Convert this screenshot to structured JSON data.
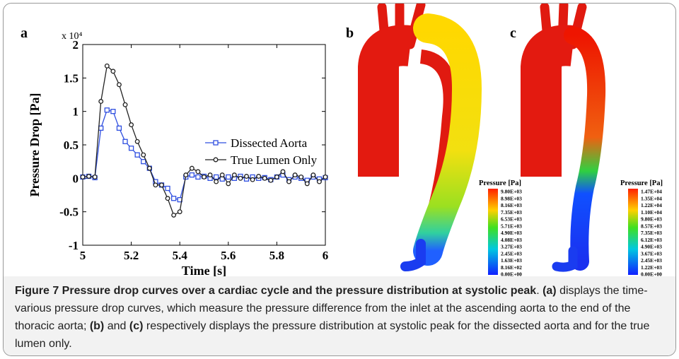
{
  "chart_data": {
    "type": "line",
    "panel_label": "a",
    "multiplier": "x 10⁴",
    "xlabel": "Time [s]",
    "ylabel": "Pressure Drop [Pa]",
    "x": [
      5.0,
      5.025,
      5.05,
      5.075,
      5.1,
      5.125,
      5.15,
      5.175,
      5.2,
      5.225,
      5.25,
      5.275,
      5.3,
      5.325,
      5.35,
      5.375,
      5.4,
      5.425,
      5.45,
      5.475,
      5.5,
      5.525,
      5.55,
      5.575,
      5.6,
      5.625,
      5.65,
      5.675,
      5.7,
      5.725,
      5.75,
      5.775,
      5.8,
      5.825,
      5.85,
      5.875,
      5.9,
      5.925,
      5.95,
      5.975,
      6.0
    ],
    "series": [
      {
        "name": "Dissected Aorta",
        "color": "#2f4fe0",
        "marker": "square",
        "values": [
          0.02,
          0.03,
          0.01,
          0.75,
          1.02,
          1.0,
          0.75,
          0.55,
          0.45,
          0.35,
          0.25,
          0.15,
          -0.05,
          -0.1,
          -0.15,
          -0.3,
          -0.32,
          0.02,
          0.05,
          0.02,
          0.03,
          0.0,
          0.02,
          -0.01,
          0.02,
          0.0,
          0.03,
          -0.01,
          0.02,
          0.0,
          0.01,
          -0.02,
          0.02,
          0.05,
          -0.02,
          0.02,
          0.0,
          -0.03,
          0.02,
          -0.01,
          0.01
        ]
      },
      {
        "name": "True Lumen Only",
        "color": "#222222",
        "marker": "circle",
        "values": [
          0.02,
          0.03,
          0.02,
          1.15,
          1.68,
          1.6,
          1.4,
          1.1,
          0.8,
          0.55,
          0.35,
          0.15,
          -0.1,
          -0.1,
          -0.3,
          -0.55,
          -0.5,
          0.05,
          0.15,
          0.1,
          0.02,
          0.05,
          -0.05,
          0.05,
          -0.08,
          0.05,
          0.0,
          0.03,
          -0.02,
          0.03,
          0.0,
          -0.03,
          0.02,
          0.1,
          -0.05,
          0.05,
          0.02,
          -0.08,
          0.05,
          -0.05,
          0.02
        ]
      }
    ],
    "xlim": [
      5,
      6
    ],
    "ylim": [
      -1,
      2
    ],
    "xticks": [
      5,
      5.2,
      5.4,
      5.6,
      5.8,
      6
    ],
    "yticks": [
      -1,
      -0.5,
      0,
      0.5,
      1,
      1.5,
      2
    ],
    "legend": "right"
  },
  "panels": [
    {
      "label": "b",
      "colorbar_title": "Pressure [Pa]",
      "colorbar_labels": [
        "9.80E+03",
        "8.98E+03",
        "8.16E+03",
        "7.35E+03",
        "6.53E+03",
        "5.71E+03",
        "4.90E+03",
        "4.08E+03",
        "3.27E+03",
        "2.45E+03",
        "1.63E+03",
        "8.16E+02",
        "0.00E+00"
      ]
    },
    {
      "label": "c",
      "colorbar_title": "Pressure [Pa]",
      "colorbar_labels": [
        "1.47E+04",
        "1.35E+04",
        "1.22E+04",
        "1.10E+04",
        "9.80E+03",
        "8.57E+03",
        "7.35E+03",
        "6.12E+03",
        "4.90E+03",
        "3.67E+03",
        "2.45E+03",
        "1.22E+03",
        "0.00E+00"
      ]
    }
  ],
  "caption": [
    {
      "text": "Figure 7 Pressure drop curves over a cardiac cycle and the pressure distribution at systolic peak",
      "bold": true
    },
    {
      "text": ". ",
      "bold": false
    },
    {
      "text": "(a)",
      "bold": true
    },
    {
      "text": " displays the time-various pressure drop curves, which measure the pressure difference from the inlet at the ascending aorta to the end of the thoracic aorta; ",
      "bold": false
    },
    {
      "text": "(b)",
      "bold": true
    },
    {
      "text": " and ",
      "bold": false
    },
    {
      "text": "(c)",
      "bold": true
    },
    {
      "text": " respectively displays the pressure distribution at systolic peak for the dissected aorta and for the true lumen only.",
      "bold": false
    }
  ]
}
